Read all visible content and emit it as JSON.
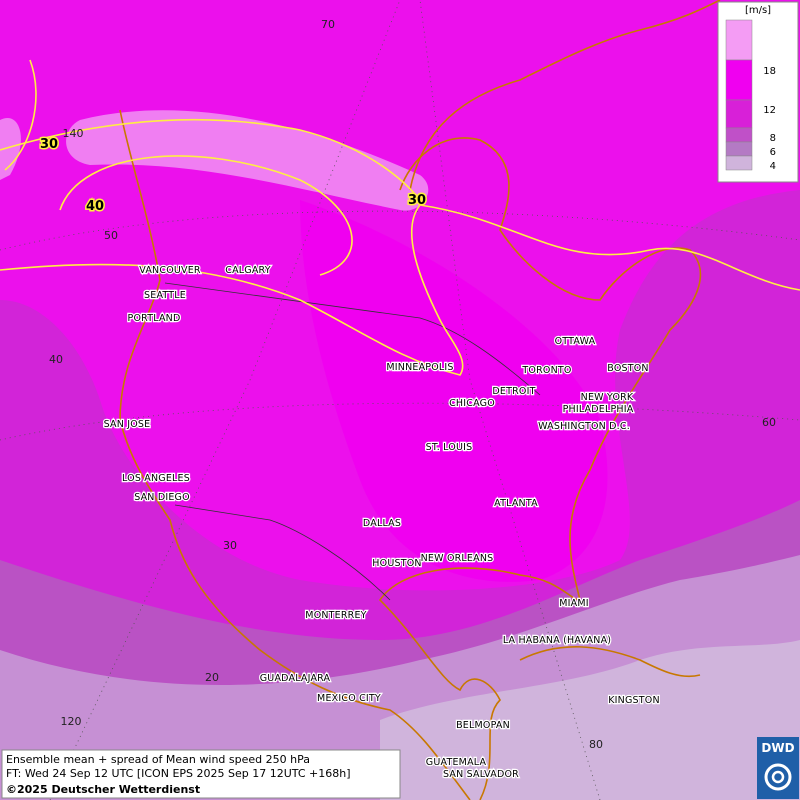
{
  "cities": [
    "VANCOUVER",
    "CALGARY",
    "SEATTLE",
    "PORTLAND",
    "MINNEAPOLIS",
    "OTTAWA",
    "TORONTO",
    "BOSTON",
    "DETROIT",
    "CHICAGO",
    "NEW YORK",
    "PHILADELPHIA",
    "WASHINGTON D.C.",
    "SAN JOSE",
    "ST. LOUIS",
    "LOS ANGELES",
    "SAN DIEGO",
    "ATLANTA",
    "DALLAS",
    "HOUSTON",
    "NEW ORLEANS",
    "MIAMI",
    "MONTERREY",
    "LA HABANA (HAVANA)",
    "GUADALAJARA",
    "MEXICO CITY",
    "KINGSTON",
    "BELMOPAN",
    "GUATEMALA",
    "SAN SALVADOR"
  ],
  "grid_labels": [
    70,
    140,
    50,
    40,
    30,
    20,
    120,
    80,
    60
  ],
  "contour_labels": [
    30,
    40,
    30
  ],
  "legend": {
    "unit": "[m/s]",
    "levels": [
      18,
      12,
      8,
      6,
      4
    ]
  },
  "footer": {
    "line1": "Ensemble mean + spread of Mean wind speed 250 hPa",
    "line2": "FT: Wed 24 Sep 12 UTC [ICON EPS 2025 Sep 17 12UTC +168h]",
    "line3": "©2025 Deutscher Wetterdienst"
  },
  "logo": "DWD"
}
